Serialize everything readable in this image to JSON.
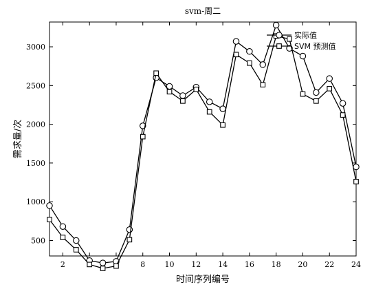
{
  "chart_data": {
    "type": "line",
    "title": "svm-周二",
    "xlabel": "时间序列编号",
    "ylabel": "需求量/次",
    "xlim": [
      1,
      24
    ],
    "ylim": [
      300,
      3320
    ],
    "x": [
      1,
      2,
      3,
      4,
      5,
      6,
      7,
      8,
      9,
      10,
      11,
      12,
      13,
      14,
      15,
      16,
      17,
      18,
      19,
      20,
      21,
      22,
      23,
      24
    ],
    "x_ticks": [
      2,
      4,
      6,
      8,
      10,
      12,
      14,
      16,
      18,
      20,
      22,
      24
    ],
    "y_ticks": [
      500,
      1000,
      1500,
      2000,
      2500,
      3000
    ],
    "legend_position": "top-right",
    "series": [
      {
        "name": "实际值",
        "marker": "circle",
        "values": [
          950,
          680,
          500,
          240,
          210,
          230,
          640,
          1980,
          2600,
          2490,
          2370,
          2480,
          2290,
          2200,
          3070,
          2940,
          2770,
          3280,
          2980,
          2880,
          2410,
          2590,
          2270,
          1450
        ]
      },
      {
        "name": "SVM 预测值",
        "marker": "square",
        "values": [
          770,
          540,
          380,
          190,
          140,
          170,
          510,
          1840,
          2660,
          2420,
          2300,
          2450,
          2160,
          1990,
          2900,
          2790,
          2510,
          3140,
          3100,
          2390,
          2300,
          2460,
          2120,
          1260
        ]
      }
    ]
  }
}
